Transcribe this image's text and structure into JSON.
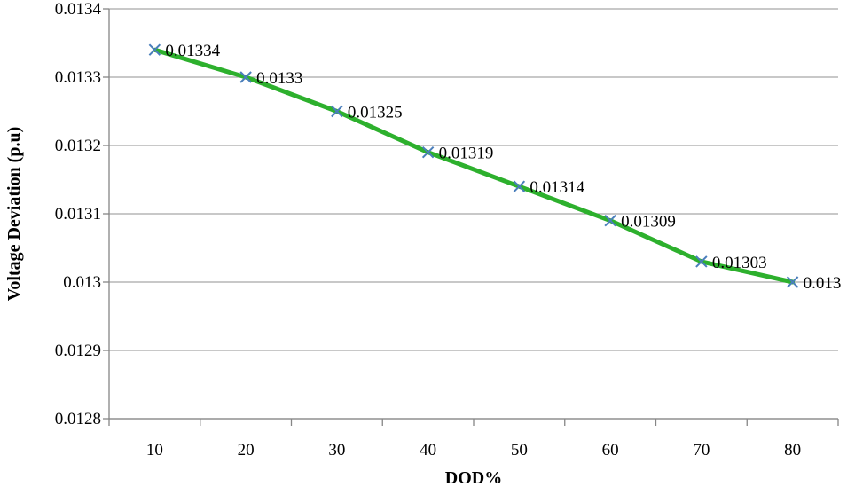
{
  "chart_data": {
    "type": "line",
    "title": "",
    "xlabel": "DOD%",
    "ylabel": "Voltage Deviation (p.u)",
    "categories": [
      "10",
      "20",
      "30",
      "40",
      "50",
      "60",
      "70",
      "80"
    ],
    "x": [
      10,
      20,
      30,
      40,
      50,
      60,
      70,
      80
    ],
    "series": [
      {
        "values": [
          0.01334,
          0.0133,
          0.01325,
          0.01319,
          0.01314,
          0.01309,
          0.01303,
          0.013
        ],
        "data_labels": [
          "0.01334",
          "0.0133",
          "0.01325",
          "0.01319",
          "0.01314",
          "0.01309",
          "0.01303",
          "0.013"
        ],
        "line_color": "#2db02d",
        "marker": "x",
        "marker_color": "#4a7ebb"
      }
    ],
    "ylim": [
      0.0128,
      0.0134
    ],
    "yticks": [
      0.0128,
      0.0129,
      0.013,
      0.0131,
      0.0132,
      0.0133,
      0.0134
    ],
    "ytick_labels": [
      "0.0128",
      "0.0129",
      "0.013",
      "0.0131",
      "0.0132",
      "0.0133",
      "0.0134"
    ],
    "grid": true,
    "grid_color": "#a6a6a6",
    "axis_color": "#868686",
    "legend": "none"
  }
}
